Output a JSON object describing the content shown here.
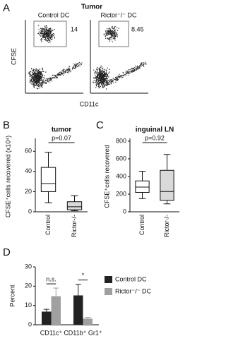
{
  "flow_panel": {
    "letter": "A",
    "title": "Tumor",
    "plots": [
      {
        "label": "Control DC",
        "gate_value": "14"
      },
      {
        "label": "Rictor⁻/⁻ DC",
        "gate_value": "8.45"
      }
    ],
    "y_label": "CFSE",
    "x_label": "CD11c"
  },
  "chart_data": [
    {
      "type": "box",
      "letter": "B",
      "title": "tumor",
      "y_label": "CFSE⁺cells recovered (x10⁴)",
      "annotation": "p=0.07",
      "categories": [
        "Control",
        "Rictor-/-"
      ],
      "colors": [
        "#ffffff",
        "#d9d9d9"
      ],
      "stats": {
        "min": [
          9,
          1
        ],
        "q1": [
          20,
          2
        ],
        "median": [
          28,
          5
        ],
        "q3": [
          44,
          10
        ],
        "max": [
          59,
          16
        ]
      },
      "ylim": [
        0,
        70
      ],
      "yticks": [
        0,
        20,
        40,
        60
      ]
    },
    {
      "type": "box",
      "letter": "C",
      "title": "inguinal LN",
      "y_label": "CFSE⁺cells recovered",
      "annotation": "p=0.92",
      "categories": [
        "Control",
        "Rictor-/-"
      ],
      "colors": [
        "#ffffff",
        "#d9d9d9"
      ],
      "stats": {
        "min": [
          150,
          90
        ],
        "q1": [
          220,
          130
        ],
        "median": [
          280,
          230
        ],
        "q3": [
          350,
          470
        ],
        "max": [
          460,
          650
        ]
      },
      "ylim": [
        0,
        800
      ],
      "yticks": [
        0,
        200,
        400,
        600,
        800
      ]
    },
    {
      "type": "bar",
      "letter": "D",
      "y_label": "Percent",
      "categories": [
        "CD11c⁺",
        "CD11b⁺ Gr1⁺"
      ],
      "annotations": [
        "n.s.",
        "*"
      ],
      "series": [
        {
          "name": "Control DC",
          "color": "#222222",
          "values": [
            6.8,
            15.2
          ],
          "errors": [
            1.2,
            5.8
          ]
        },
        {
          "name": "Rictor⁻/⁻ DC",
          "color": "#a0a0a0",
          "values": [
            14.8,
            3.2
          ],
          "errors": [
            4.2,
            0.6
          ]
        }
      ],
      "ylim": [
        0,
        30
      ],
      "yticks": [
        0,
        10,
        20,
        30
      ]
    }
  ]
}
